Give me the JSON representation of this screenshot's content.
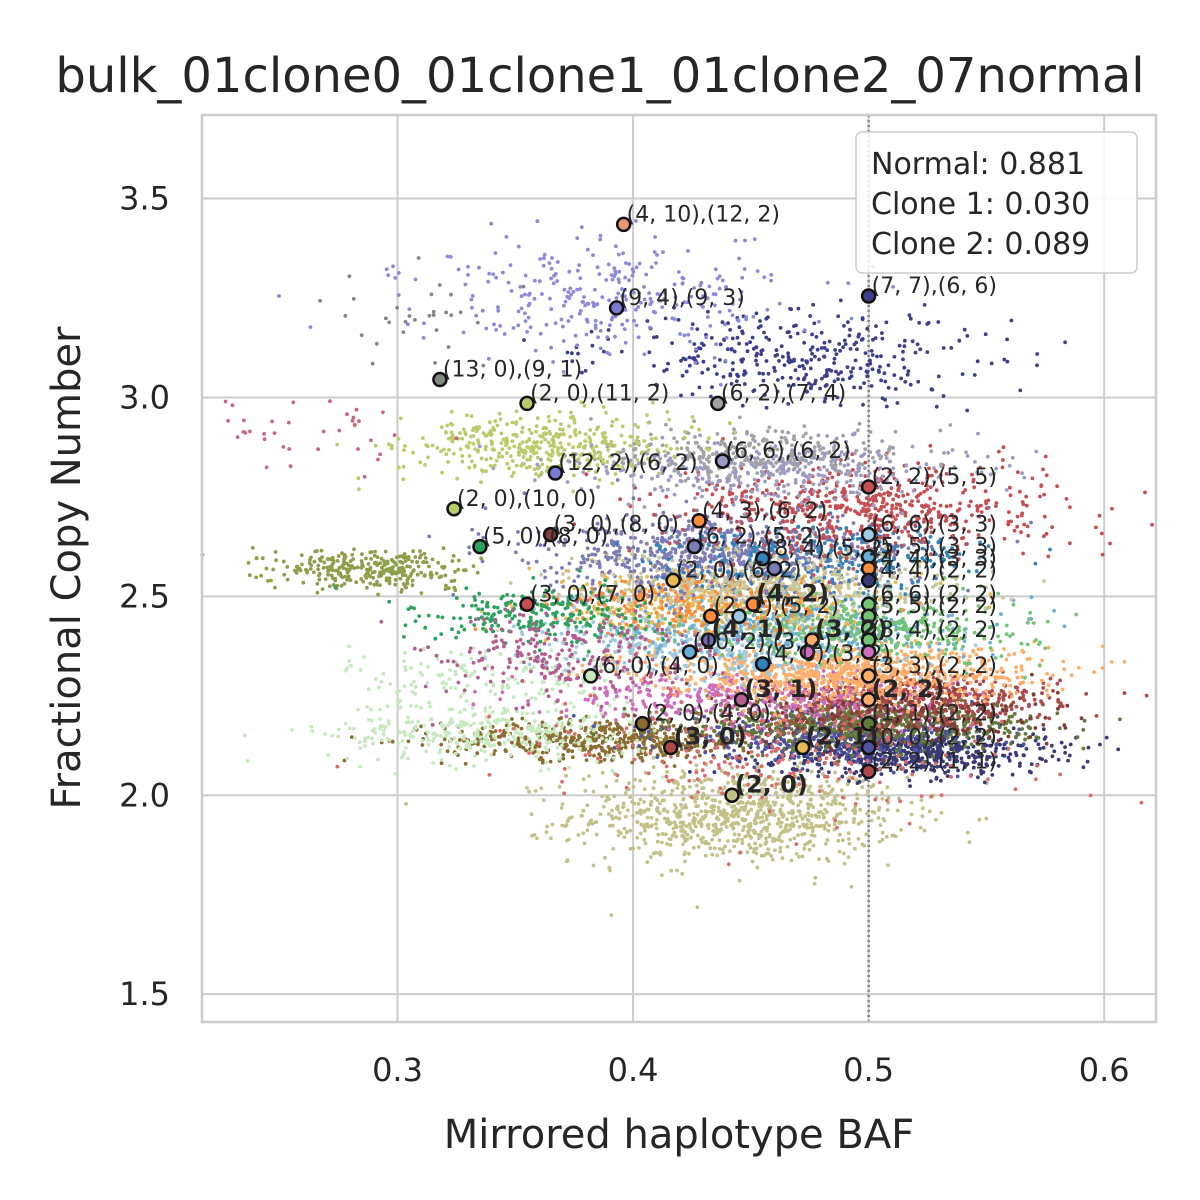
{
  "chart_data": {
    "type": "scatter",
    "title": "bulk_01clone0_01clone1_01clone2_07normal",
    "xlabel": "Mirrored haplotype BAF",
    "ylabel": "Fractional Copy Number",
    "xlim": [
      0.217,
      0.622
    ],
    "ylim": [
      1.43,
      3.71
    ],
    "xticks": [
      0.3,
      0.4,
      0.5,
      0.6
    ],
    "xtick_labels": [
      "0.3",
      "0.4",
      "0.5",
      "0.6"
    ],
    "yticks": [
      1.5,
      2.0,
      2.5,
      3.0,
      3.5
    ],
    "ytick_labels": [
      "1.5",
      "2.0",
      "2.5",
      "3.0",
      "3.5"
    ],
    "grid": true,
    "reference_line": {
      "x": 0.5,
      "style": "dotted",
      "color": "#808080"
    },
    "legend": {
      "placement": "top-right",
      "entries": [
        "Normal: 0.881",
        "Clone 1: 0.030",
        "Clone 2: 0.089"
      ]
    },
    "clusters": [
      {
        "color": "#c3c187",
        "cx": 0.445,
        "cy": 1.95,
        "sx": 0.035,
        "sy": 0.06,
        "n": 900
      },
      {
        "color": "#8c6d31",
        "cx": 0.39,
        "cy": 2.14,
        "sx": 0.035,
        "sy": 0.025,
        "n": 500
      },
      {
        "color": "#c7e9c0",
        "cx": 0.34,
        "cy": 2.16,
        "sx": 0.035,
        "sy": 0.04,
        "n": 350
      },
      {
        "color": "#c7e9c0",
        "cx": 0.34,
        "cy": 2.3,
        "sx": 0.03,
        "sy": 0.04,
        "n": 150
      },
      {
        "color": "#393b79",
        "cx": 0.515,
        "cy": 2.11,
        "sx": 0.03,
        "sy": 0.03,
        "n": 700
      },
      {
        "color": "#5254a3",
        "cx": 0.48,
        "cy": 2.15,
        "sx": 0.035,
        "sy": 0.03,
        "n": 400
      },
      {
        "color": "#637939",
        "cx": 0.5,
        "cy": 2.18,
        "sx": 0.035,
        "sy": 0.03,
        "n": 700
      },
      {
        "color": "#ad494a",
        "cx": 0.52,
        "cy": 2.24,
        "sx": 0.03,
        "sy": 0.03,
        "n": 500
      },
      {
        "color": "#ce6dbd",
        "cx": 0.45,
        "cy": 2.25,
        "sx": 0.04,
        "sy": 0.03,
        "n": 400
      },
      {
        "color": "#843c39",
        "cx": 0.51,
        "cy": 2.2,
        "sx": 0.035,
        "sy": 0.04,
        "n": 250
      },
      {
        "color": "#fdae6b",
        "cx": 0.49,
        "cy": 2.31,
        "sx": 0.04,
        "sy": 0.035,
        "n": 900
      },
      {
        "color": "#e7ba52",
        "cx": 0.44,
        "cy": 2.48,
        "sx": 0.035,
        "sy": 0.05,
        "n": 500
      },
      {
        "color": "#9ecae1",
        "cx": 0.43,
        "cy": 2.38,
        "sx": 0.035,
        "sy": 0.04,
        "n": 400
      },
      {
        "color": "#6baed6",
        "cx": 0.47,
        "cy": 2.42,
        "sx": 0.035,
        "sy": 0.04,
        "n": 350
      },
      {
        "color": "#74c476",
        "cx": 0.5,
        "cy": 2.42,
        "sx": 0.035,
        "sy": 0.04,
        "n": 400
      },
      {
        "color": "#fd8d3c",
        "cx": 0.43,
        "cy": 2.48,
        "sx": 0.03,
        "sy": 0.04,
        "n": 300
      },
      {
        "color": "#7b7bb5",
        "cx": 0.44,
        "cy": 2.6,
        "sx": 0.04,
        "sy": 0.05,
        "n": 800
      },
      {
        "color": "#3182bd",
        "cx": 0.48,
        "cy": 2.6,
        "sx": 0.035,
        "sy": 0.04,
        "n": 300
      },
      {
        "color": "#c7c79e",
        "cx": 0.46,
        "cy": 2.53,
        "sx": 0.04,
        "sy": 0.04,
        "n": 400
      },
      {
        "color": "#c44e52",
        "cx": 0.5,
        "cy": 2.72,
        "sx": 0.04,
        "sy": 0.06,
        "n": 600
      },
      {
        "color": "#9b9bc3",
        "cx": 0.46,
        "cy": 2.82,
        "sx": 0.04,
        "sy": 0.04,
        "n": 400
      },
      {
        "color": "#a3a3a3",
        "cx": 0.45,
        "cy": 2.86,
        "sx": 0.035,
        "sy": 0.03,
        "n": 250
      },
      {
        "color": "#3b3f8c",
        "cx": 0.47,
        "cy": 3.1,
        "sx": 0.04,
        "sy": 0.06,
        "n": 350
      },
      {
        "color": "#8a8ad8",
        "cx": 0.39,
        "cy": 3.25,
        "sx": 0.04,
        "sy": 0.07,
        "n": 300
      },
      {
        "color": "#b8cc6a",
        "cx": 0.36,
        "cy": 2.88,
        "sx": 0.03,
        "sy": 0.04,
        "n": 400
      },
      {
        "color": "#8e9f4a",
        "cx": 0.29,
        "cy": 2.57,
        "sx": 0.02,
        "sy": 0.025,
        "n": 300
      },
      {
        "color": "#2ca25f",
        "cx": 0.36,
        "cy": 2.45,
        "sx": 0.025,
        "sy": 0.035,
        "n": 250
      },
      {
        "color": "#b45d8e",
        "cx": 0.37,
        "cy": 2.35,
        "sx": 0.03,
        "sy": 0.06,
        "n": 250
      },
      {
        "color": "#dd6b6b",
        "cx": 0.46,
        "cy": 2.1,
        "sx": 0.05,
        "sy": 0.08,
        "n": 250
      },
      {
        "color": "#7f8a7f",
        "cx": 0.31,
        "cy": 3.2,
        "sx": 0.02,
        "sy": 0.06,
        "n": 30
      },
      {
        "color": "#c9677e",
        "cx": 0.27,
        "cy": 2.9,
        "sx": 0.03,
        "sy": 0.05,
        "n": 40
      }
    ],
    "annotations": [
      {
        "x": 0.396,
        "y": 3.435,
        "color": "#e99675",
        "label": "(4, 10),(12, 2)",
        "bold": false
      },
      {
        "x": 0.5,
        "y": 3.255,
        "color": "#3b3f8c",
        "label": "(7, 7),(6, 6)",
        "bold": false
      },
      {
        "x": 0.393,
        "y": 3.225,
        "color": "#7b7bd5",
        "label": "(9, 4),(9, 3)",
        "bold": false
      },
      {
        "x": 0.318,
        "y": 3.045,
        "color": "#7f8a7f",
        "label": "(13, 0),(9, 1)",
        "bold": false
      },
      {
        "x": 0.355,
        "y": 2.985,
        "color": "#b8cc6a",
        "label": "(2, 0),(11, 2)",
        "bold": false
      },
      {
        "x": 0.436,
        "y": 2.985,
        "color": "#a3a3a3",
        "label": "(6, 2),(7, 4)",
        "bold": false
      },
      {
        "x": 0.438,
        "y": 2.84,
        "color": "#9b9bc3",
        "label": "(6, 6),(6, 2)",
        "bold": false
      },
      {
        "x": 0.367,
        "y": 2.81,
        "color": "#7b7bd5",
        "label": "(12, 2),(6, 2)",
        "bold": false
      },
      {
        "x": 0.5,
        "y": 2.775,
        "color": "#c44e52",
        "label": "(2, 2),(5, 5)",
        "bold": false
      },
      {
        "x": 0.324,
        "y": 2.72,
        "color": "#b8cc6a",
        "label": "(2, 0),(10, 0)",
        "bold": false
      },
      {
        "x": 0.428,
        "y": 2.69,
        "color": "#fd8d3c",
        "label": "(4, 3),(6, 2)",
        "bold": false
      },
      {
        "x": 0.365,
        "y": 2.655,
        "color": "#843c39",
        "label": "(3, 0),(8, 0)",
        "bold": false
      },
      {
        "x": 0.5,
        "y": 2.655,
        "color": "#9ecae1",
        "label": "(6, 6),(3, 3)",
        "bold": false
      },
      {
        "x": 0.335,
        "y": 2.625,
        "color": "#2ca25f",
        "label": "(5, 0),(8, 0)",
        "bold": false
      },
      {
        "x": 0.426,
        "y": 2.625,
        "color": "#7b7bb5",
        "label": "(6, 2),(5, 2)",
        "bold": false
      },
      {
        "x": 0.5,
        "y": 2.6,
        "color": "#6baed6",
        "label": "(5, 5),(3, 3)",
        "bold": false
      },
      {
        "x": 0.455,
        "y": 2.595,
        "color": "#3182bd",
        "label": "(8, 4),(5, 2)",
        "bold": false
      },
      {
        "x": 0.46,
        "y": 2.57,
        "color": "#7b7bb5",
        "label": "",
        "bold": false
      },
      {
        "x": 0.5,
        "y": 2.57,
        "color": "#fd8d3c",
        "label": "(4, 4),(3, 3)",
        "bold": false
      },
      {
        "x": 0.5,
        "y": 2.54,
        "color": "#393b79",
        "label": "(4, 4),(2, 2)",
        "bold": false
      },
      {
        "x": 0.417,
        "y": 2.54,
        "color": "#e7ba52",
        "label": "(2, 0),(6, 2)",
        "bold": false
      },
      {
        "x": 0.451,
        "y": 2.48,
        "color": "#fd8d3c",
        "label": "(4, 2)",
        "bold": true
      },
      {
        "x": 0.355,
        "y": 2.48,
        "color": "#c44e52",
        "label": "(3, 0),(7, 0)",
        "bold": false
      },
      {
        "x": 0.5,
        "y": 2.48,
        "color": "#74c476",
        "label": "(6, 6),(2, 2)",
        "bold": false
      },
      {
        "x": 0.433,
        "y": 2.45,
        "color": "#fd8d3c",
        "label": "(2, 1),(5, 2)",
        "bold": false
      },
      {
        "x": 0.445,
        "y": 2.45,
        "color": "#9ecae1",
        "label": "",
        "bold": false
      },
      {
        "x": 0.5,
        "y": 2.45,
        "color": "#74c476",
        "label": "(5, 5),(2, 2)",
        "bold": false
      },
      {
        "x": 0.5,
        "y": 2.42,
        "color": "#74c476",
        "label": "",
        "bold": false
      },
      {
        "x": 0.432,
        "y": 2.39,
        "color": "#6b6bb5",
        "label": "(4, 1)",
        "bold": true
      },
      {
        "x": 0.476,
        "y": 2.39,
        "color": "#fdae6b",
        "label": "(3, 2)",
        "bold": true
      },
      {
        "x": 0.5,
        "y": 2.39,
        "color": "#74c476",
        "label": "(3, 4),(2, 2)",
        "bold": false
      },
      {
        "x": 0.424,
        "y": 2.36,
        "color": "#6baed6",
        "label": "(10, 2),(3, 2)",
        "bold": false
      },
      {
        "x": 0.474,
        "y": 2.36,
        "color": "#ce6dbd",
        "label": "",
        "bold": false
      },
      {
        "x": 0.5,
        "y": 2.36,
        "color": "#ce6dbd",
        "label": "",
        "bold": false
      },
      {
        "x": 0.455,
        "y": 2.33,
        "color": "#3182bd",
        "label": "(4, 0),(3, 2)",
        "bold": false
      },
      {
        "x": 0.382,
        "y": 2.3,
        "color": "#c7e9c0",
        "label": "(6, 0),(4, 0)",
        "bold": false
      },
      {
        "x": 0.5,
        "y": 2.3,
        "color": "#fdae6b",
        "label": "(3, 3),(2, 2)",
        "bold": false
      },
      {
        "x": 0.446,
        "y": 2.24,
        "color": "#b45d8e",
        "label": "(3, 1)",
        "bold": true
      },
      {
        "x": 0.5,
        "y": 2.24,
        "color": "#fdae6b",
        "label": "(2, 2)",
        "bold": true
      },
      {
        "x": 0.404,
        "y": 2.18,
        "color": "#8c6d31",
        "label": "(2, 0),(4, 0)",
        "bold": false
      },
      {
        "x": 0.5,
        "y": 2.18,
        "color": "#637939",
        "label": "(1, 1),(2, 2)",
        "bold": false
      },
      {
        "x": 0.416,
        "y": 2.12,
        "color": "#ad494a",
        "label": "(3, 0)",
        "bold": true
      },
      {
        "x": 0.472,
        "y": 2.12,
        "color": "#e7ba52",
        "label": "(2, 1)",
        "bold": true
      },
      {
        "x": 0.5,
        "y": 2.12,
        "color": "#5254a3",
        "label": "(0, 0),(2, 2)",
        "bold": false
      },
      {
        "x": 0.5,
        "y": 2.06,
        "color": "#ad494a",
        "label": "(2, 2),(1, 1)",
        "bold": false
      },
      {
        "x": 0.442,
        "y": 2.0,
        "color": "#c3c187",
        "label": "(2, 0)",
        "bold": true
      }
    ]
  }
}
